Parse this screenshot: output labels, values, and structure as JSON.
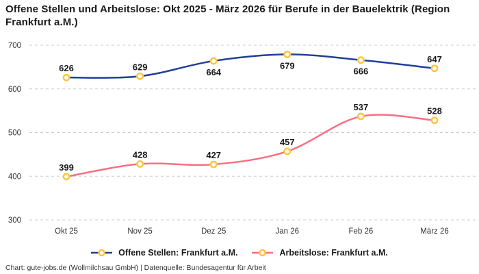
{
  "header": {
    "title": "Offene Stellen und Arbeitslose: Okt 2025 - März 2026 für Berufe in der Bauelektrik (Region Frankfurt a.M.)"
  },
  "chart_data": {
    "type": "line",
    "title": "Offene Stellen und Arbeitslose: Okt 2025 - März 2026 für Berufe in der Bauelektrik (Region Frankfurt a.M.)",
    "categories": [
      "Okt 25",
      "Nov 25",
      "Dez 25",
      "Jan 26",
      "Feb 26",
      "März 26"
    ],
    "series": [
      {
        "name": "Offene Stellen: Frankfurt a.M.",
        "values": [
          626,
          629,
          664,
          679,
          666,
          647
        ],
        "color": "#1F3F9A",
        "label_positions": [
          "above",
          "above",
          "below",
          "below",
          "below",
          "above"
        ]
      },
      {
        "name": "Arbeitslose: Frankfurt a.M.",
        "values": [
          399,
          428,
          427,
          457,
          537,
          528
        ],
        "color": "#F96E83",
        "label_positions": [
          "above",
          "above",
          "above",
          "above",
          "above",
          "above"
        ]
      }
    ],
    "marker": {
      "fill": "#FFFFFF",
      "ring": "#FFC53D"
    },
    "ylim": [
      300,
      700
    ],
    "yticks": [
      300,
      400,
      500,
      600,
      700
    ],
    "grid": "dashed-horizontal",
    "grid_color": "#CCCCCC",
    "tick_color": "#333333",
    "value_label_color": "#1A1A1A",
    "legend_position": "bottom",
    "smooth": true
  },
  "legend": {
    "items": [
      {
        "label": "Offene Stellen: Frankfurt a.M."
      },
      {
        "label": "Arbeitslose: Frankfurt a.M."
      }
    ]
  },
  "footer": {
    "text": "Chart: gute-jobs.de (Wollmilchsau GmbH) | Datenquelle: Bundesagentur für Arbeit"
  }
}
